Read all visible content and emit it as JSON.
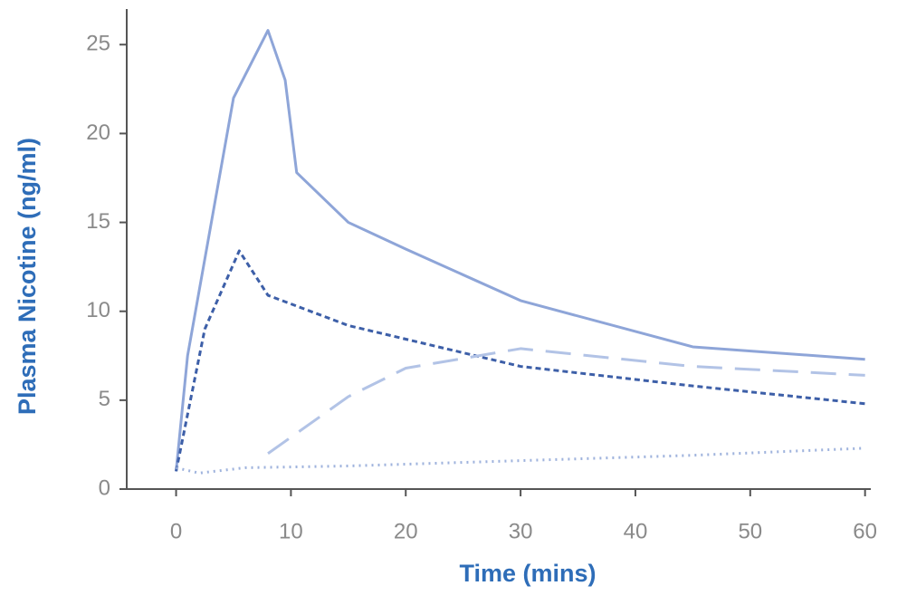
{
  "chart_data": {
    "type": "line",
    "x_label": "Time (mins)",
    "y_label": "Plasma Nicotine (ng/ml)",
    "xlim": [
      -4.3,
      60.5
    ],
    "xticks": [
      0,
      10,
      20,
      30,
      40,
      50,
      60
    ],
    "ylim": [
      0,
      27
    ],
    "yticks": [
      0,
      5,
      10,
      15,
      20,
      25
    ],
    "grid": false,
    "series": [
      {
        "color": "#8ea5d8",
        "style": "solid",
        "x": [
          0,
          1,
          5,
          8,
          9.5,
          10.5,
          15,
          20,
          30,
          45,
          60
        ],
        "values": [
          1,
          7.5,
          22,
          25.8,
          23,
          17.8,
          15,
          13.5,
          10.6,
          8,
          7.3
        ]
      },
      {
        "color": "#3d5fa8",
        "style": "short-dash",
        "x": [
          0,
          2.5,
          5.5,
          8,
          15,
          30,
          45,
          60
        ],
        "values": [
          1,
          9,
          13.4,
          10.9,
          9.2,
          6.9,
          5.8,
          4.8
        ]
      },
      {
        "color": "#b2c3e6",
        "style": "long-dash",
        "x": [
          8,
          15,
          20,
          30,
          45,
          60
        ],
        "values": [
          2,
          5.2,
          6.8,
          7.9,
          6.9,
          6.4
        ]
      },
      {
        "color": "#9fb3dd",
        "style": "dotted",
        "x": [
          0,
          2,
          6,
          15,
          30,
          45,
          60
        ],
        "values": [
          1.2,
          0.9,
          1.2,
          1.3,
          1.6,
          1.9,
          2.3
        ]
      }
    ]
  }
}
